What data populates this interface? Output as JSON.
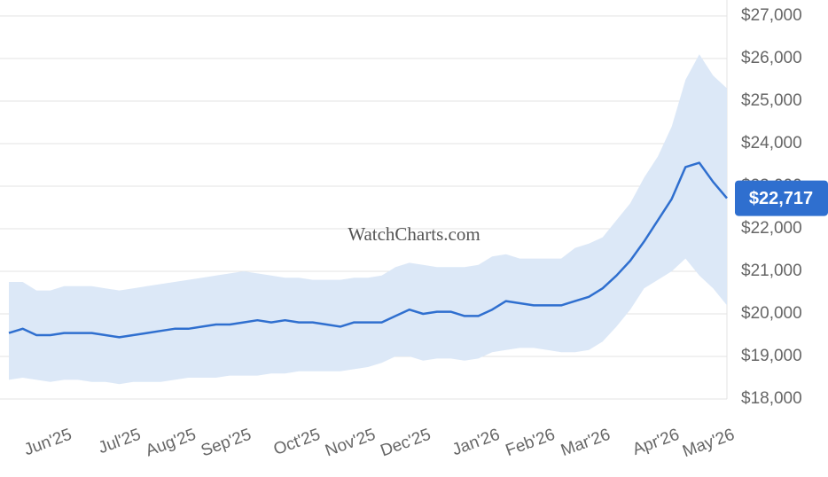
{
  "chart_data": {
    "type": "line",
    "annotation": "WatchCharts.com",
    "categories": [
      null,
      null,
      null,
      null,
      "Jun'25",
      null,
      null,
      null,
      null,
      "Jul'25",
      null,
      null,
      null,
      "Aug'25",
      null,
      null,
      null,
      "Sep'25",
      null,
      null,
      null,
      null,
      "Oct'25",
      null,
      null,
      null,
      "Nov'25",
      null,
      null,
      null,
      "Dec'25",
      null,
      null,
      null,
      null,
      "Jan'26",
      null,
      null,
      null,
      "Feb'26",
      null,
      null,
      null,
      "Mar'26",
      null,
      null,
      null,
      null,
      "Apr'26",
      null,
      null,
      null,
      "May'26"
    ],
    "values": [
      19550,
      19650,
      19500,
      19500,
      19550,
      19550,
      19550,
      19500,
      19450,
      19500,
      19550,
      19600,
      19650,
      19650,
      19700,
      19750,
      19750,
      19800,
      19850,
      19800,
      19850,
      19800,
      19800,
      19750,
      19700,
      19800,
      19800,
      19800,
      19950,
      20100,
      20000,
      20050,
      20050,
      19950,
      19950,
      20100,
      20300,
      20250,
      20200,
      20200,
      20200,
      20300,
      20400,
      20600,
      20900,
      21250,
      21700,
      22200,
      22700,
      23450,
      23550,
      23100,
      22717
    ],
    "value_labels": [
      null,
      null,
      null,
      null,
      null,
      null,
      null,
      null,
      null,
      null,
      null,
      null,
      null,
      null,
      null,
      null,
      null,
      null,
      null,
      null,
      null,
      null,
      null,
      null,
      null,
      null,
      null,
      null,
      null,
      null,
      null,
      null,
      null,
      null,
      null,
      null,
      null,
      null,
      null,
      null,
      null,
      null,
      null,
      null,
      null,
      null,
      null,
      null,
      null,
      null,
      null,
      null,
      "$22,717"
    ],
    "band_upper": [
      20750,
      20750,
      20550,
      20550,
      20650,
      20650,
      20650,
      20600,
      20550,
      20600,
      20650,
      20700,
      20750,
      20800,
      20850,
      20900,
      20950,
      21000,
      20950,
      20900,
      20850,
      20850,
      20800,
      20800,
      20800,
      20850,
      20850,
      20900,
      21100,
      21200,
      21150,
      21100,
      21100,
      21100,
      21150,
      21350,
      21400,
      21300,
      21300,
      21300,
      21300,
      21550,
      21650,
      21800,
      22200,
      22600,
      23200,
      23700,
      24400,
      25500,
      26100,
      25600,
      25300
    ],
    "band_lower": [
      18450,
      18500,
      18450,
      18400,
      18450,
      18450,
      18400,
      18400,
      18350,
      18400,
      18400,
      18400,
      18450,
      18500,
      18500,
      18500,
      18550,
      18550,
      18550,
      18600,
      18600,
      18650,
      18650,
      18650,
      18650,
      18700,
      18750,
      18850,
      19000,
      19000,
      18900,
      18950,
      18950,
      18900,
      18950,
      19100,
      19150,
      19200,
      19200,
      19150,
      19100,
      19100,
      19150,
      19350,
      19700,
      20100,
      20600,
      20800,
      21000,
      21300,
      20900,
      20600,
      20200
    ],
    "color": "#2f6fcf",
    "band_color": "#dce8f7",
    "ylim": [
      18000,
      27000
    ],
    "yticks": [
      {
        "value": 18000,
        "label": "$18,000"
      },
      {
        "value": 19000,
        "label": "$19,000"
      },
      {
        "value": 20000,
        "label": "$20,000"
      },
      {
        "value": 21000,
        "label": "$21,000"
      },
      {
        "value": 22000,
        "label": "$22,000"
      },
      {
        "value": 23000,
        "label": "$23,000"
      },
      {
        "value": 24000,
        "label": "$24,000"
      },
      {
        "value": 25000,
        "label": "$25,000"
      },
      {
        "value": 26000,
        "label": "$26,000"
      },
      {
        "value": 27000,
        "label": "$27,000"
      }
    ],
    "grid": true
  }
}
